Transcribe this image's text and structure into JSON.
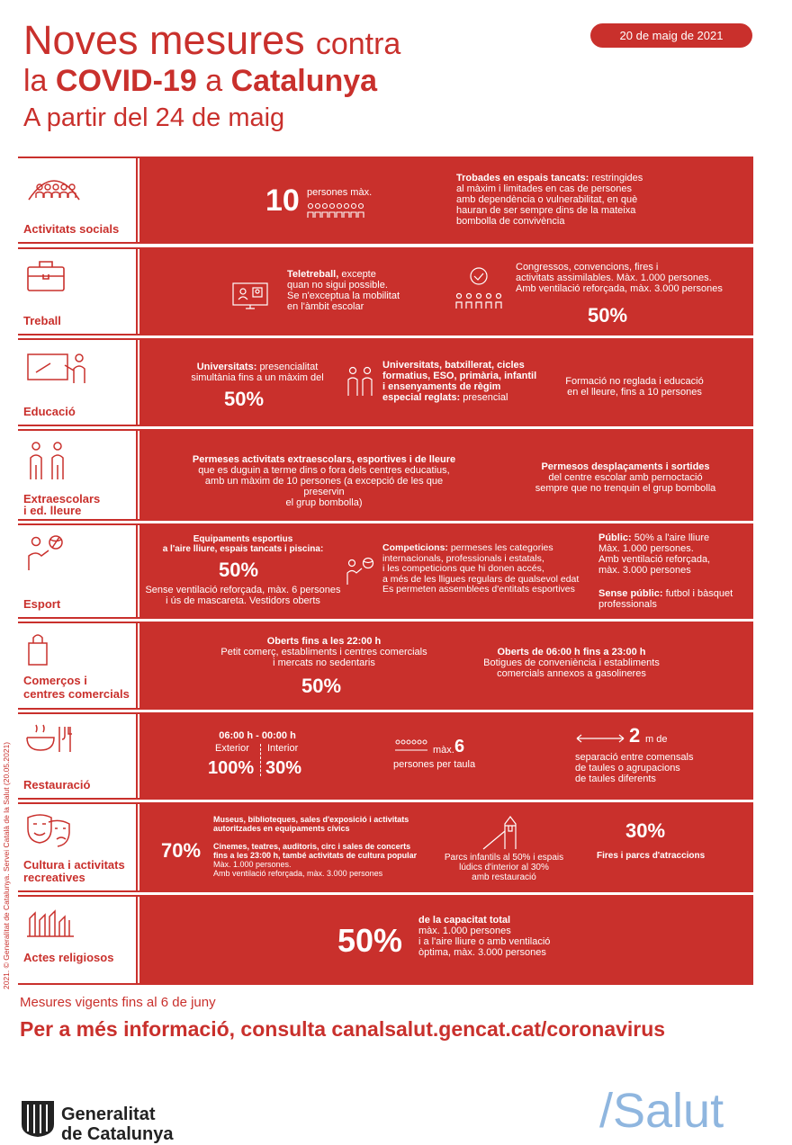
{
  "header": {
    "title_a": "Noves mesures",
    "title_b": "contra",
    "title_c": "la",
    "title_d": "COVID-19",
    "title_e": "a",
    "title_f": "Catalunya",
    "subtitle": "A partir del 24 de maig",
    "date": "20 de maig de 2021"
  },
  "rows": {
    "social": {
      "label": "Activitats socials",
      "big": "10",
      "small": "persones màx.",
      "bold": "Trobades en espais tancats:",
      "text1": "restringides",
      "text2": "al màxim i limitades en cas de persones",
      "text3": "amb dependència o vulnerabilitat, en què",
      "text4": "hauran de ser sempre dins de la mateixa",
      "text5": "bombolla de convivència"
    },
    "treball": {
      "label": "Treball",
      "bold": "Teletreball,",
      "t1": "excepte",
      "t2": "quan no sigui possible.",
      "t3": "Se n'exceptua la mobilitat",
      "t4": "en l'àmbit escolar",
      "c1": "Congressos, convencions, fires i",
      "c2": "activitats assimilables. Màx. 1.000 persones.",
      "c3": "Amb ventilació reforçada, màx. 3.000 persones",
      "pct": "50%"
    },
    "educacio": {
      "label": "Educació",
      "u_bold": "Universitats:",
      "u1": "presencialitat",
      "u2": "simultània fins a un màxim del",
      "u_pct": "50%",
      "b1": "Universitats, batxillerat, cicles",
      "b2": "formatius, ESO, primària, infantil",
      "b3": "i ensenyaments de règim",
      "b4": "especial reglats:",
      "b4n": "presencial",
      "f1": "Formació no reglada i educació",
      "f2": "en el lleure, fins a 10 persones"
    },
    "extra": {
      "label1": "Extraescolars",
      "label2": "i ed. lleure",
      "a1": "Permeses activitats extraescolars, esportives i de lleure",
      "a2": "que es duguin a terme dins o fora dels centres educatius,",
      "a3": "amb un màxim de 10 persones (a excepció de les que preservin",
      "a4": "el grup bombolla)",
      "d1": "Permesos desplaçaments i sortides",
      "d2": "del centre escolar amb pernoctació",
      "d3": "sempre que no trenquin el grup bombolla"
    },
    "esport": {
      "label": "Esport",
      "e1": "Equipaments esportius",
      "e2": "a l'aire lliure, espais tancats i piscina:",
      "pct": "50%",
      "e3": "Sense ventilació reforçada, màx. 6 persones",
      "e4": "i ús de mascareta. Vestidors oberts",
      "c_bold": "Competicions:",
      "c1": "permeses les categories",
      "c2": "internacionals, professionals i estatals,",
      "c3": "i les competicions que hi donen accés,",
      "c4": "a més de les lligues regulars de qualsevol edat",
      "c5": "Es permeten assemblees d'entitats esportives",
      "p_bold": "Públic:",
      "p1": "50% a l'aire lliure",
      "p2": "Màx. 1.000 persones.",
      "p3": "Amb ventilació reforçada,",
      "p4": "màx. 3.000 persones",
      "s_bold": "Sense públic:",
      "s1": "futbol i bàsquet",
      "s2": "professionals"
    },
    "comerc": {
      "label1": "Comerços i",
      "label2": "centres comercials",
      "o1": "Oberts fins a les 22:00 h",
      "o2": "Petit comerç, establiments i centres comercials",
      "o3": "i mercats no sedentaris",
      "pct": "50%",
      "g1": "Oberts de 06:00 h fins a 23:00 h",
      "g2": "Botigues de conveniència i establiments",
      "g3": "comercials annexos a gasolineres"
    },
    "rest": {
      "label": "Restauració",
      "hours": "06:00 h - 00:00 h",
      "ext": "Exterior",
      "int": "Interior",
      "ext_pct": "100%",
      "int_pct": "30%",
      "max": "màx.",
      "six": "6",
      "pt": "persones per taula",
      "two": "2",
      "m": "m de",
      "s1": "separació entre comensals",
      "s2": "de taules o agrupacions",
      "s3": "de taules diferents"
    },
    "cultura": {
      "label1": "Cultura i activitats",
      "label2": "recreatives",
      "pct": "70%",
      "m1": "Museus, biblioteques, sales d'exposició i activitats",
      "m2": "autoritzades en equipaments cívics",
      "c1": "Cinemes, teatres, auditoris, circ i sales de concerts",
      "c2": "fins a les 23:00 h, també activitats de cultura popular",
      "c3": "Màx. 1.000 persones.",
      "c4": "Amb ventilació reforçada, màx. 3.000 persones",
      "p1": "Parcs infantils al 50% i espais",
      "p2": "lúdics d'interior al 30%",
      "p3": "amb restauració",
      "f_pct": "30%",
      "f1": "Fires i parcs d'atraccions"
    },
    "religio": {
      "label": "Actes religiosos",
      "pct": "50%",
      "r1": "de la capacitat total",
      "r2": "màx. 1.000 persones",
      "r3": "i a l'aire lliure o amb ventilació",
      "r4": "òptima, màx. 3.000 persones"
    }
  },
  "footer": {
    "vigent": "Mesures vigents fins al 6 de juny",
    "info": "Per a més informació, consulta canalsalut.gencat.cat/coronavirus",
    "gencat1": "Generalitat",
    "gencat2": "de Catalunya",
    "salut": "/Salut",
    "credit": "2021. © Generalitat de Catalunya. Servei Català de la Salut (20.05.2021)"
  },
  "colors": {
    "accent": "#c9302c",
    "salut": "#8fb6df"
  }
}
